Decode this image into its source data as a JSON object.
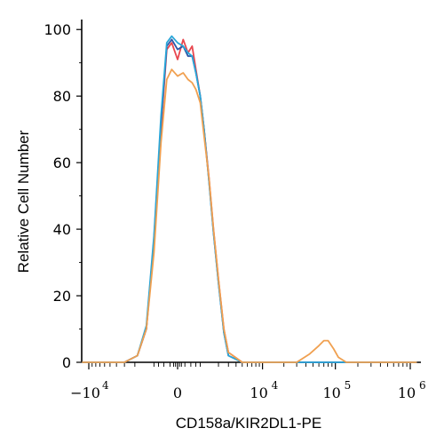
{
  "chart_data": {
    "type": "line",
    "title": "",
    "xlabel": "CD158a/KIR2DL1-PE",
    "ylabel": "Relative Cell Number",
    "x_scale": "biexponential",
    "xlim": [
      -20000,
      1200000
    ],
    "ylim": [
      0,
      103
    ],
    "y_ticks": [
      0,
      20,
      40,
      60,
      80,
      100
    ],
    "x_ticks": [
      {
        "value": -10000,
        "base": "−10",
        "exp": "4"
      },
      {
        "value": 0,
        "base": "0",
        "exp": ""
      },
      {
        "value": 10000,
        "base": "10",
        "exp": "4"
      },
      {
        "value": 100000,
        "base": "10",
        "exp": "5"
      },
      {
        "value": 1000000,
        "base": "10",
        "exp": "6"
      }
    ],
    "grid": false,
    "legend": "none",
    "series": [
      {
        "color": "#e8464e",
        "x": [
          -20000,
          -3000,
          -1800,
          -1200,
          -800,
          -500,
          -300,
          -150,
          0,
          150,
          300,
          450,
          600,
          800,
          1000,
          1300,
          1600,
          2000,
          2500,
          3000,
          5000,
          10000,
          100000,
          1200000
        ],
        "y": [
          0,
          0,
          2,
          10,
          35,
          70,
          94,
          96,
          91,
          97,
          93,
          95,
          88,
          80,
          70,
          55,
          40,
          25,
          10,
          3,
          0,
          0,
          0,
          0
        ]
      },
      {
        "color": "#2b57a8",
        "x": [
          -20000,
          -3000,
          -1800,
          -1200,
          -800,
          -500,
          -300,
          -150,
          0,
          150,
          300,
          450,
          600,
          800,
          1000,
          1300,
          1600,
          2000,
          2500,
          3000,
          5000,
          10000,
          100000,
          1200000
        ],
        "y": [
          0,
          0,
          2,
          10,
          37,
          72,
          95,
          97,
          94,
          95,
          92,
          92,
          87,
          80,
          70,
          54,
          39,
          24,
          9,
          2,
          0,
          0,
          0,
          0
        ]
      },
      {
        "color": "#2aa6d8",
        "x": [
          -20000,
          -3000,
          -1800,
          -1200,
          -800,
          -500,
          -300,
          -150,
          0,
          150,
          300,
          450,
          600,
          800,
          1000,
          1300,
          1600,
          2000,
          2500,
          3000,
          5000,
          10000,
          100000,
          1200000
        ],
        "y": [
          0,
          0,
          2,
          11,
          38,
          74,
          96,
          98,
          96,
          95,
          93,
          92,
          87,
          80,
          70,
          54,
          39,
          24,
          9,
          2,
          0,
          0,
          0,
          0
        ]
      },
      {
        "color": "#f0a050",
        "x": [
          -20000,
          -3000,
          -1800,
          -1200,
          -800,
          -500,
          -300,
          -150,
          0,
          150,
          300,
          450,
          600,
          800,
          1000,
          1300,
          1600,
          2000,
          2500,
          3000,
          5000,
          10000,
          30000,
          45000,
          60000,
          70000,
          80000,
          95000,
          110000,
          140000,
          200000,
          1200000
        ],
        "y": [
          0,
          0,
          2,
          10,
          33,
          66,
          85,
          88,
          86,
          87,
          85,
          84,
          82,
          78,
          68,
          55,
          40,
          25,
          10,
          3,
          0,
          0,
          0,
          2.5,
          5,
          6.5,
          6.5,
          4,
          1.5,
          0,
          0,
          0
        ]
      }
    ]
  }
}
